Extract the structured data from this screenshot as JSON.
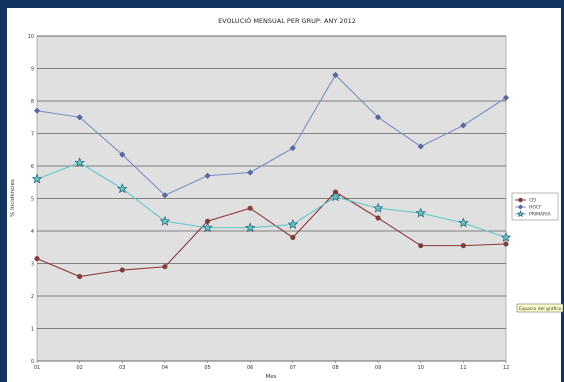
{
  "chart_data": {
    "type": "line",
    "title": "EVOLUCIÓ MENSUAL PER GRUP: ANY 2012",
    "xlabel": "Mes",
    "ylabel": "% Incidències",
    "categories": [
      "01",
      "02",
      "03",
      "04",
      "05",
      "06",
      "07",
      "08",
      "09",
      "10",
      "11",
      "12"
    ],
    "ylim": [
      0,
      10
    ],
    "yticks": [
      0,
      1,
      2,
      3,
      4,
      5,
      6,
      7,
      8,
      9,
      10
    ],
    "grid": true,
    "legend_position": "right",
    "series": [
      {
        "name": "CEI",
        "color": "#8b3a3a",
        "marker": "circle",
        "values": [
          3.15,
          2.6,
          2.8,
          2.9,
          4.3,
          4.7,
          3.8,
          5.2,
          4.4,
          3.55,
          3.55,
          3.6
        ]
      },
      {
        "name": "HOCF",
        "color": "#7a8fc2",
        "marker": "diamond",
        "values": [
          7.7,
          7.5,
          6.35,
          5.1,
          5.7,
          5.8,
          6.55,
          8.8,
          7.5,
          6.6,
          7.25,
          8.1
        ]
      },
      {
        "name": "PRIMARIA",
        "color": "#5fc8c8",
        "marker": "star",
        "values": [
          5.6,
          6.1,
          5.3,
          4.3,
          4.1,
          4.1,
          4.2,
          5.05,
          4.7,
          4.55,
          4.25,
          3.8
        ]
      }
    ]
  },
  "tooltip": "Espacio del gráfico"
}
